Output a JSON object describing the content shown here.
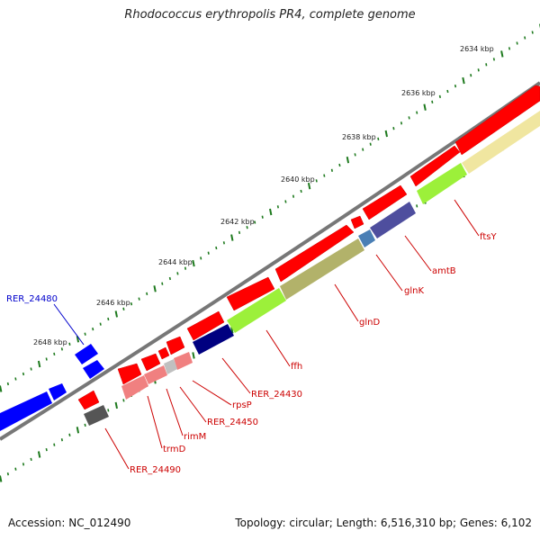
{
  "title": "Rhodococcus erythropolis PR4, complete genome",
  "footer": {
    "accession": "Accession: NC_012490",
    "topology": "Topology: circular; Length: 6,516,310 bp; Genes: 6,102"
  },
  "colors": {
    "backbone": "#777777",
    "tick": "#1e7a1e",
    "label_red": "#cc0000",
    "label_blue": "#0000cc",
    "forward_gene": "#ff0000",
    "blue_gene": "#0000ff"
  },
  "ticks": [
    {
      "label": "2634 kbp"
    },
    {
      "label": "2636 kbp"
    },
    {
      "label": "2638 kbp"
    },
    {
      "label": "2640 kbp"
    },
    {
      "label": "2642 kbp"
    },
    {
      "label": "2644 kbp"
    },
    {
      "label": "2646 kbp"
    },
    {
      "label": "2648 kbp"
    }
  ],
  "genes": [
    {
      "label": "ftsY",
      "color": "#cc0000"
    },
    {
      "label": "amtB",
      "color": "#cc0000"
    },
    {
      "label": "glnK",
      "color": "#cc0000"
    },
    {
      "label": "glnD",
      "color": "#cc0000"
    },
    {
      "label": "ffh",
      "color": "#cc0000"
    },
    {
      "label": "RER_24430",
      "color": "#cc0000"
    },
    {
      "label": "rpsP",
      "color": "#cc0000"
    },
    {
      "label": "RER_24450",
      "color": "#cc0000"
    },
    {
      "label": "rimM",
      "color": "#cc0000"
    },
    {
      "label": "trmD",
      "color": "#cc0000"
    },
    {
      "label": "RER_24490",
      "color": "#cc0000"
    },
    {
      "label": "RER_24480",
      "color": "#0000cc"
    }
  ]
}
